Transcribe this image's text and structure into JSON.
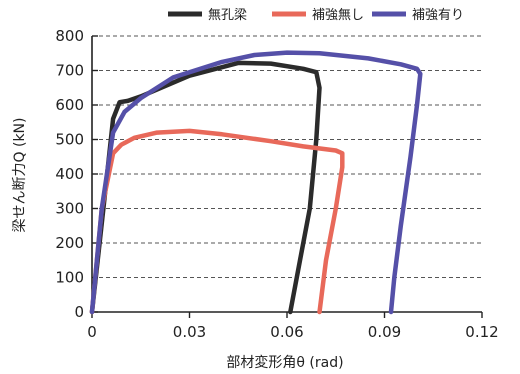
{
  "chart_data": {
    "type": "line",
    "title": "",
    "xlabel": "部材変形角θ (rad)",
    "ylabel": "梁せん断力Q (kN)",
    "xlim": [
      0,
      0.12
    ],
    "ylim": [
      0,
      800
    ],
    "x_ticks": [
      "0",
      "0.03",
      "0.06",
      "0.09",
      "0.12"
    ],
    "y_ticks": [
      "0",
      "100",
      "200",
      "300",
      "400",
      "500",
      "600",
      "700",
      "800"
    ],
    "grid": "horizontal dashed",
    "legend_position": "top-right",
    "series": [
      {
        "name": "無孔梁",
        "color": "#2b2b2b",
        "points": [
          [
            0.0,
            0
          ],
          [
            0.0035,
            300
          ],
          [
            0.0065,
            560
          ],
          [
            0.0085,
            608
          ],
          [
            0.011,
            612
          ],
          [
            0.015,
            625
          ],
          [
            0.03,
            685
          ],
          [
            0.045,
            722
          ],
          [
            0.055,
            720
          ],
          [
            0.065,
            705
          ],
          [
            0.069,
            695
          ],
          [
            0.07,
            650
          ],
          [
            0.069,
            500
          ],
          [
            0.067,
            300
          ],
          [
            0.064,
            150
          ],
          [
            0.061,
            0
          ]
        ]
      },
      {
        "name": "補強無し",
        "color": "#e8695a",
        "points": [
          [
            0.0,
            0
          ],
          [
            0.003,
            300
          ],
          [
            0.0065,
            460
          ],
          [
            0.009,
            485
          ],
          [
            0.013,
            505
          ],
          [
            0.02,
            520
          ],
          [
            0.03,
            525
          ],
          [
            0.04,
            515
          ],
          [
            0.055,
            495
          ],
          [
            0.065,
            480
          ],
          [
            0.075,
            468
          ],
          [
            0.077,
            460
          ],
          [
            0.077,
            420
          ],
          [
            0.075,
            300
          ],
          [
            0.072,
            150
          ],
          [
            0.07,
            0
          ]
        ]
      },
      {
        "name": "補強有り",
        "color": "#5550a8",
        "points": [
          [
            0.0,
            0
          ],
          [
            0.003,
            300
          ],
          [
            0.0065,
            520
          ],
          [
            0.01,
            580
          ],
          [
            0.015,
            620
          ],
          [
            0.025,
            680
          ],
          [
            0.04,
            725
          ],
          [
            0.05,
            745
          ],
          [
            0.06,
            752
          ],
          [
            0.07,
            750
          ],
          [
            0.085,
            735
          ],
          [
            0.095,
            718
          ],
          [
            0.1,
            705
          ],
          [
            0.101,
            690
          ],
          [
            0.1,
            600
          ],
          [
            0.098,
            450
          ],
          [
            0.095,
            250
          ],
          [
            0.093,
            100
          ],
          [
            0.092,
            0
          ]
        ]
      }
    ]
  }
}
